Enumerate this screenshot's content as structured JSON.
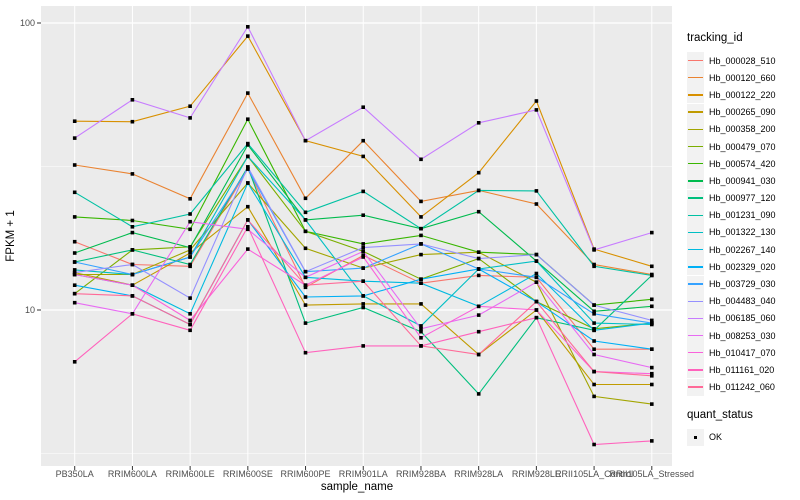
{
  "figure": {
    "y_axis_title": "FPKM + 1",
    "x_axis_title": "sample_name",
    "panel_background": "#EBEBEB",
    "grid_color": "#FFFFFF",
    "axis_text_color": "#4D4D4D",
    "tick_color": "#333333",
    "point_color": "#000000",
    "y_tick_labels": [
      "100",
      "10"
    ]
  },
  "legend": {
    "tracking_title": "tracking_id",
    "quant_title": "quant_status",
    "quant_items": [
      {
        "label": "OK"
      }
    ]
  },
  "chart_data": {
    "type": "line",
    "title": "",
    "xlabel": "sample_name",
    "ylabel": "FPKM + 1",
    "y_scale": "log10",
    "ylim": [
      2.9,
      113
    ],
    "y_major_breaks": [
      10,
      100
    ],
    "y_minor_breaks": [
      3.162,
      31.62
    ],
    "grid": true,
    "legend_position": "right",
    "point_shape": "filled-square",
    "quant_status": "OK",
    "categories": [
      "PB350LA",
      "RRIM600LA",
      "RRIM600LE",
      "RRIM600SE",
      "RRIM600PE",
      "RRIM901LA",
      "RRIM928BA",
      "RRIM928LA",
      "RRIM928LE",
      "RRII105LA_Control",
      "RRII105LA_Stressed"
    ],
    "series": [
      {
        "name": "Hb_000028_510",
        "color": "#F8766D",
        "values": [
          17.3,
          14.4,
          14.2,
          31.0,
          12.0,
          15.5,
          12.4,
          13.2,
          13.0,
          7.3,
          7.3
        ]
      },
      {
        "name": "Hb_000120_660",
        "color": "#EA8331",
        "values": [
          32.0,
          29.8,
          24.4,
          57.0,
          24.5,
          38.9,
          23.9,
          26.1,
          23.4,
          14.4,
          13.3
        ]
      },
      {
        "name": "Hb_000122_220",
        "color": "#D89000",
        "values": [
          45.5,
          45.3,
          51.3,
          90.0,
          38.9,
          34.3,
          21.1,
          30.1,
          53.5,
          16.3,
          14.2
        ]
      },
      {
        "name": "Hb_000265_090",
        "color": "#C09B00",
        "values": [
          13.5,
          12.2,
          15.8,
          22.9,
          10.4,
          10.5,
          10.5,
          7.0,
          10.0,
          5.5,
          5.5
        ]
      },
      {
        "name": "Hb_000358_200",
        "color": "#A3A500",
        "values": [
          13.3,
          13.3,
          16.2,
          27.7,
          16.4,
          14.0,
          15.6,
          15.9,
          12.5,
          5.0,
          4.7
        ]
      },
      {
        "name": "Hb_000479_070",
        "color": "#7CAE00",
        "values": [
          11.4,
          16.2,
          16.6,
          34.3,
          18.8,
          16.0,
          12.8,
          15.1,
          10.7,
          8.6,
          9.0
        ]
      },
      {
        "name": "Hb_000574_420",
        "color": "#39B600",
        "values": [
          21.1,
          20.5,
          19.1,
          46.2,
          18.8,
          17.0,
          18.2,
          15.9,
          15.6,
          10.4,
          10.9
        ]
      },
      {
        "name": "Hb_000941_030",
        "color": "#00BB4E",
        "values": [
          15.8,
          18.6,
          16.5,
          37.6,
          20.6,
          21.4,
          19.2,
          22.0,
          14.8,
          9.9,
          10.3
        ]
      },
      {
        "name": "Hb_000977_120",
        "color": "#00BF7D",
        "values": [
          14.7,
          16.2,
          14.4,
          31.5,
          9.0,
          10.2,
          8.4,
          5.1,
          9.4,
          8.5,
          13.2
        ]
      },
      {
        "name": "Hb_001231_090",
        "color": "#00C1A3",
        "values": [
          25.7,
          19.5,
          21.6,
          38.0,
          21.9,
          25.9,
          19.2,
          26.1,
          26.0,
          14.2,
          13.2
        ]
      },
      {
        "name": "Hb_001322_130",
        "color": "#00BFC4",
        "values": [
          13.8,
          13.3,
          15.3,
          34.3,
          20.6,
          11.2,
          8.8,
          13.9,
          14.8,
          9.0,
          8.9
        ]
      },
      {
        "name": "Hb_002267_140",
        "color": "#00BAE0",
        "values": [
          13.3,
          12.2,
          9.7,
          27.7,
          13.0,
          12.6,
          12.4,
          10.3,
          13.4,
          8.5,
          9.0
        ]
      },
      {
        "name": "Hb_002329_020",
        "color": "#00B0F6",
        "values": [
          12.2,
          11.2,
          8.9,
          20.6,
          11.1,
          11.2,
          12.8,
          13.9,
          10.7,
          7.8,
          7.3
        ]
      },
      {
        "name": "Hb_003729_030",
        "color": "#35A2FF",
        "values": [
          14.7,
          13.3,
          15.3,
          31.0,
          13.6,
          14.0,
          17.0,
          13.9,
          13.0,
          9.7,
          9.0
        ]
      },
      {
        "name": "Hb_004483_040",
        "color": "#9590FF",
        "values": [
          13.5,
          14.4,
          11.0,
          31.5,
          13.6,
          16.5,
          17.0,
          15.1,
          15.6,
          10.4,
          9.2
        ]
      },
      {
        "name": "Hb_006185_060",
        "color": "#C77CFF",
        "values": [
          39.7,
          54.0,
          46.7,
          97.0,
          38.9,
          50.9,
          33.5,
          44.9,
          49.8,
          16.2,
          18.6
        ]
      },
      {
        "name": "Hb_008253_030",
        "color": "#E76BF3",
        "values": [
          10.6,
          9.7,
          20.3,
          19.1,
          13.0,
          16.0,
          8.6,
          9.6,
          12.5,
          7.0,
          6.3
        ]
      },
      {
        "name": "Hb_010417_070",
        "color": "#FA62DB",
        "values": [
          13.3,
          12.2,
          9.2,
          16.3,
          12.2,
          15.3,
          8.0,
          10.3,
          10.0,
          6.1,
          6.0
        ]
      },
      {
        "name": "Hb_011161_020",
        "color": "#FF62BC",
        "values": [
          6.6,
          9.7,
          8.5,
          19.5,
          7.1,
          7.5,
          7.5,
          8.4,
          9.4,
          3.4,
          3.5
        ]
      },
      {
        "name": "Hb_011242_060",
        "color": "#FF6A98",
        "values": [
          11.4,
          11.2,
          8.9,
          20.6,
          12.2,
          12.6,
          7.5,
          7.0,
          10.7,
          6.1,
          5.9
        ]
      }
    ]
  }
}
